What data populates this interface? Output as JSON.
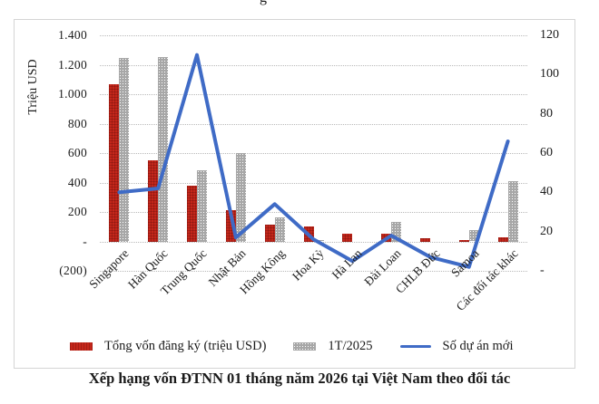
{
  "cropped_title_fragment": "g",
  "caption": "Xếp hạng vốn ĐTNN 01 tháng năm 2026 tại Việt Nam theo đối tác",
  "legend": {
    "items": [
      {
        "label": "Tổng vốn đăng ký (triệu  USD)",
        "swatch": "red-bar-swatch"
      },
      {
        "label": "1T/2025",
        "swatch": "gray-bar-swatch"
      },
      {
        "label": "Số dự án mới",
        "swatch": "blue-line-swatch"
      }
    ]
  },
  "chart_data": {
    "type": "bar",
    "subtype": "bar+line combo, dual axis",
    "title": "Xếp hạng vốn ĐTNN 01 tháng năm 2026 tại Việt Nam theo đối tác",
    "categories": [
      "Singapore",
      "Hàn Quốc",
      "Trung Quốc",
      "Nhật Bản",
      "Hồng Kông",
      "Hoa Kỳ",
      "Hà Lan",
      "Đài Loan",
      "CHLB Đức",
      "Samoa",
      "Các đối tác khác"
    ],
    "series": [
      {
        "name": "Tổng vốn đăng ký (triệu  USD)",
        "type": "bar",
        "axis": "left",
        "color": "#c4271b",
        "values": [
          1070,
          550,
          380,
          210,
          115,
          100,
          55,
          55,
          20,
          10,
          25
        ]
      },
      {
        "name": "1T/2025",
        "type": "bar",
        "axis": "left",
        "color": "#a7a7a7",
        "values": [
          1245,
          1255,
          485,
          600,
          165,
          8,
          0,
          135,
          0,
          78,
          410
        ]
      },
      {
        "name": "Số dự án mới",
        "type": "line",
        "axis": "right",
        "color": "#3f6bc6",
        "values": [
          40,
          42,
          110,
          17,
          34,
          16,
          5,
          18,
          7,
          2,
          66
        ]
      }
    ],
    "axis_left": {
      "title": "Triệu USD",
      "min": -200,
      "max": 1400,
      "step": 200,
      "tick_labels": [
        "1.400",
        "1.200",
        "1.000",
        "800",
        "600",
        "400",
        "200",
        "-",
        "(200)"
      ]
    },
    "axis_right": {
      "min": 0,
      "max": 120,
      "step": 20,
      "tick_labels": [
        "120",
        "100",
        "80",
        "60",
        "40",
        "20",
        "-"
      ]
    },
    "grid": "horizontal dotted, left-axis steps",
    "legend_position": "bottom"
  }
}
